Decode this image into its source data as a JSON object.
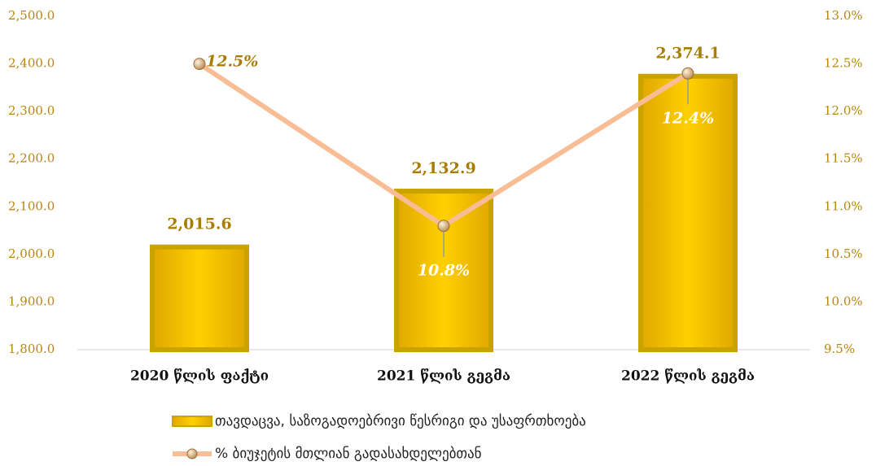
{
  "chart_data": {
    "type": "bar",
    "categories": [
      "2020 წლის ფაქტი",
      "2021 წლის გეგმა",
      "2022 წლის გეგმა"
    ],
    "series": [
      {
        "name": "თავდაცვა, საზოგადოებრივი წესრიგი და უსაფრთხოება",
        "type": "bar",
        "axis": "y",
        "color": "#f5c400",
        "values": [
          2015.6,
          2132.9,
          2374.1
        ],
        "value_labels": [
          "2,015.6",
          "2,132.9",
          "2,374.1"
        ]
      },
      {
        "name": "% ბიუჯეტის მთლიან გადასახდელებთან",
        "type": "line",
        "axis": "y2",
        "color": "#f8bd94",
        "values": [
          12.5,
          10.8,
          12.4
        ],
        "value_labels": [
          "12.5%",
          "10.8%",
          "12.4%"
        ]
      }
    ],
    "ylim": [
      1800,
      2500
    ],
    "yticks": [
      {
        "value": 1800,
        "label": "1,800.0"
      },
      {
        "value": 1900,
        "label": "1,900.0"
      },
      {
        "value": 2000,
        "label": "2,000.0"
      },
      {
        "value": 2100,
        "label": "2,100.0"
      },
      {
        "value": 2200,
        "label": "2,200.0"
      },
      {
        "value": 2300,
        "label": "2,300.0"
      },
      {
        "value": 2400,
        "label": "2,400.0"
      },
      {
        "value": 2500,
        "label": "2,500.0"
      }
    ],
    "y2lim": [
      9.5,
      13.0
    ],
    "y2ticks": [
      {
        "value": 9.5,
        "label": "9.5%"
      },
      {
        "value": 10.0,
        "label": "10.0%"
      },
      {
        "value": 10.5,
        "label": "10.5%"
      },
      {
        "value": 11.0,
        "label": "11.0%"
      },
      {
        "value": 11.5,
        "label": "11.5%"
      },
      {
        "value": 12.0,
        "label": "12.0%"
      },
      {
        "value": 12.5,
        "label": "12.5%"
      },
      {
        "value": 13.0,
        "label": "13.0%"
      }
    ],
    "grid": false,
    "legend": "bottom"
  }
}
